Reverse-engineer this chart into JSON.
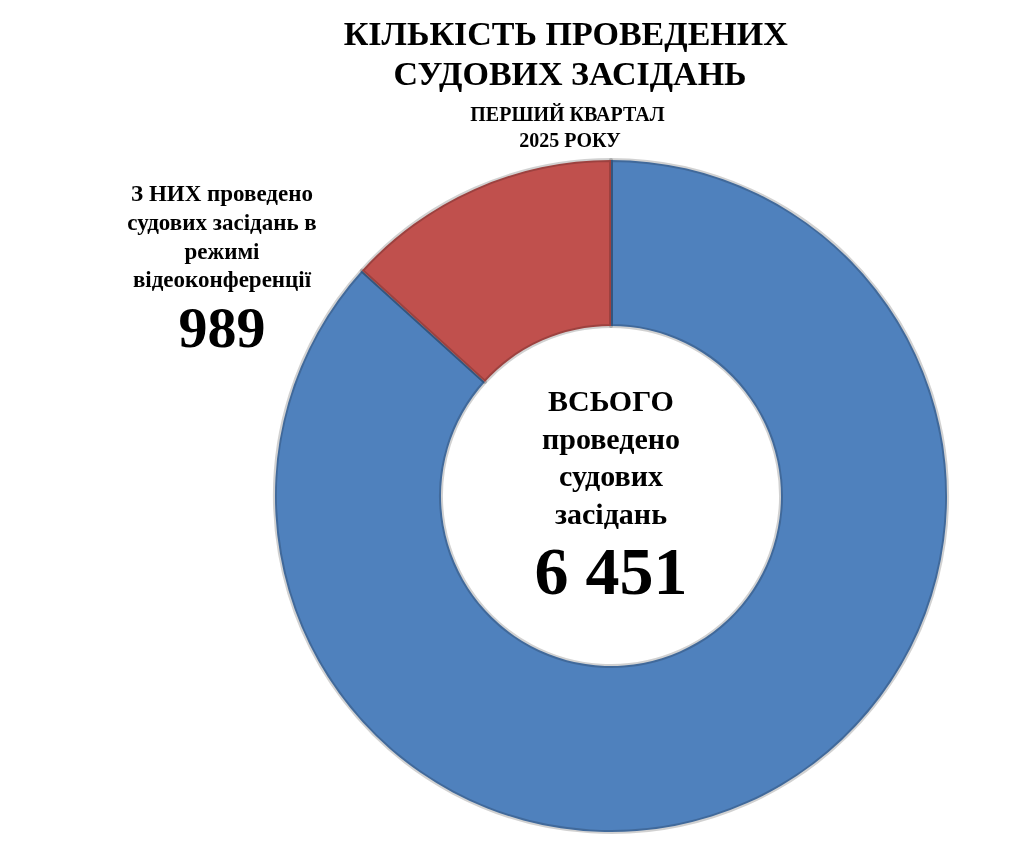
{
  "chart_data": {
    "type": "donut",
    "title": "КІЛЬКІСТЬ ПРОВЕДЕНИХ СУДОВИХ ЗАСІДАНЬ",
    "subtitle": "ПЕРШИЙ КВАРТАЛ 2025 РОКУ",
    "categories": [
      "ВСЬОГО проведено судових засідань",
      "З НИХ проведено судових засідань в режимі відеоконференції"
    ],
    "values": [
      6451,
      989
    ],
    "value_labels": [
      "6 451",
      "989"
    ],
    "colors": [
      "#4f81bd",
      "#c0504d"
    ],
    "legend": false
  }
}
